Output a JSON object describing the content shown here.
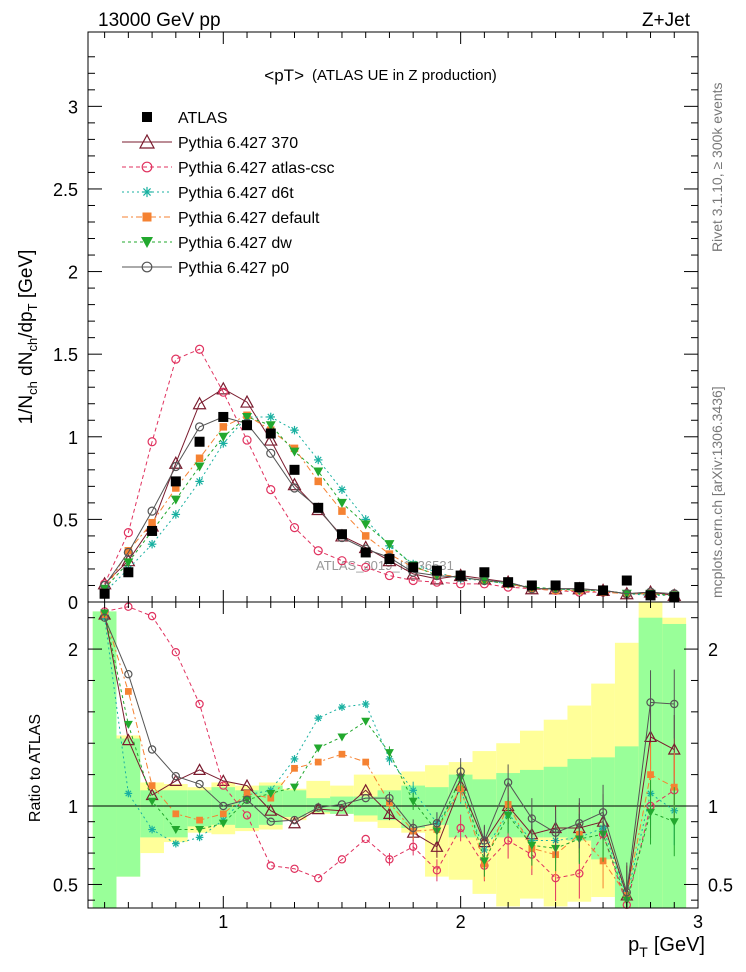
{
  "header": {
    "left": "13000 GeV pp",
    "right": "Z+Jet"
  },
  "side_labels": {
    "rivet": "Rivet 3.1.10, ≥ 300k events",
    "mcplots": "mcplots.cern.ch [arXiv:1306.3436]"
  },
  "chart_data": {
    "type": "scatter",
    "title": "<pT>",
    "subtitle": "(ATLAS UE in Z production)",
    "watermark": "ATLAS_2019_I1736531",
    "xlabel": "p_T [GeV]",
    "xlabel_main": "p",
    "xlabel_sub": "T",
    "xlabel_unit": "[GeV]",
    "ylabel": "1/N_ch dN_ch/dp_T [GeV]",
    "ylabel_parts": [
      "1/N",
      "ch",
      " dN",
      "ch",
      "/dp",
      "T",
      " [GeV]"
    ],
    "ratio_ylabel": "Ratio to ATLAS",
    "xlim": [
      0.43,
      3.0
    ],
    "ylim": [
      0,
      3.45
    ],
    "ratio_ylim": [
      0.35,
      2.3
    ],
    "xticks": [
      "1",
      "2",
      "3"
    ],
    "yticks": [
      "0",
      "0.5",
      "1",
      "1.5",
      "2",
      "2.5",
      "3"
    ],
    "ratio_yticks": [
      "0.5",
      "1",
      "2"
    ],
    "legend_position": "top-left",
    "x": [
      0.5,
      0.6,
      0.7,
      0.8,
      0.9,
      1.0,
      1.1,
      1.2,
      1.3,
      1.4,
      1.5,
      1.6,
      1.7,
      1.8,
      1.9,
      2.0,
      2.1,
      2.2,
      2.3,
      2.4,
      2.5,
      2.6,
      2.7,
      2.8,
      2.9
    ],
    "data": {
      "name": "ATLAS",
      "color": "#000000",
      "values": [
        0.05,
        0.18,
        0.43,
        0.73,
        0.97,
        1.12,
        1.07,
        1.02,
        0.8,
        0.57,
        0.41,
        0.3,
        0.26,
        0.21,
        0.19,
        0.16,
        0.18,
        0.12,
        0.1,
        0.1,
        0.09,
        0.07,
        0.13,
        0.04,
        0.03
      ]
    },
    "series": [
      {
        "name": "Pythia 6.427 370",
        "color": "#7a1b2e",
        "marker": "triangle-open",
        "dash": "",
        "values": [
          0.11,
          0.25,
          0.46,
          0.84,
          1.2,
          1.29,
          1.21,
          0.98,
          0.71,
          0.56,
          0.4,
          0.33,
          0.25,
          0.17,
          0.14,
          0.16,
          0.14,
          0.12,
          0.08,
          0.08,
          0.08,
          0.07,
          0.05,
          0.06,
          0.04
        ],
        "ratio": [
          2.22,
          1.42,
          1.07,
          1.16,
          1.23,
          1.16,
          1.13,
          0.97,
          0.89,
          0.98,
          0.97,
          1.1,
          0.95,
          0.83,
          0.74,
          1.13,
          0.77,
          1.0,
          0.82,
          0.86,
          0.86,
          0.9,
          0.43,
          1.44,
          1.36
        ]
      },
      {
        "name": "Pythia 6.427 atlas-csc",
        "color": "#e0325f",
        "marker": "circle-open",
        "dash": "4,3",
        "values": [
          0.11,
          0.42,
          0.97,
          1.47,
          1.53,
          1.27,
          0.98,
          0.68,
          0.45,
          0.31,
          0.25,
          0.21,
          0.16,
          0.13,
          0.12,
          0.11,
          0.11,
          0.09,
          0.08,
          0.07,
          0.06,
          0.06,
          0.05,
          0.05,
          0.04
        ],
        "ratio": [
          2.24,
          2.27,
          2.21,
          1.98,
          1.65,
          1.13,
          0.94,
          0.62,
          0.6,
          0.54,
          0.66,
          0.79,
          0.66,
          0.74,
          0.59,
          0.86,
          0.62,
          0.78,
          0.69,
          0.54,
          0.57,
          0.82,
          0.37,
          1.0,
          1.1
        ]
      },
      {
        "name": "Pythia 6.427 d6t",
        "color": "#18b0a0",
        "marker": "star",
        "dash": "2,3",
        "values": [
          0.06,
          0.2,
          0.35,
          0.53,
          0.73,
          0.96,
          1.12,
          1.12,
          1.04,
          0.86,
          0.68,
          0.5,
          0.34,
          0.23,
          0.18,
          0.14,
          0.13,
          0.11,
          0.08,
          0.08,
          0.07,
          0.07,
          0.05,
          0.04,
          0.04
        ],
        "ratio": [
          2.2,
          1.08,
          0.85,
          0.76,
          0.8,
          0.91,
          1.07,
          1.1,
          1.3,
          1.56,
          1.63,
          1.65,
          1.3,
          1.1,
          0.89,
          1.1,
          0.72,
          0.95,
          0.78,
          0.78,
          0.8,
          0.86,
          0.42,
          1.08,
          0.97
        ]
      },
      {
        "name": "Pythia 6.427 default",
        "color": "#f58232",
        "marker": "square",
        "dash": "6,3,2,3",
        "values": [
          0.07,
          0.31,
          0.48,
          0.69,
          0.87,
          1.06,
          1.13,
          1.04,
          0.93,
          0.73,
          0.55,
          0.4,
          0.29,
          0.21,
          0.17,
          0.15,
          0.13,
          0.11,
          0.08,
          0.07,
          0.07,
          0.06,
          0.05,
          0.05,
          0.04
        ],
        "ratio": [
          2.22,
          1.73,
          1.13,
          0.95,
          0.91,
          0.95,
          1.08,
          1.05,
          1.24,
          1.28,
          1.33,
          1.28,
          1.02,
          0.84,
          0.85,
          1.11,
          0.63,
          1.01,
          0.73,
          0.69,
          0.82,
          0.65,
          0.43,
          1.2,
          1.12
        ]
      },
      {
        "name": "Pythia 6.427 dw",
        "color": "#22a82e",
        "marker": "triangle-down",
        "dash": "3,3",
        "values": [
          0.08,
          0.24,
          0.43,
          0.62,
          0.82,
          1.0,
          1.12,
          1.07,
          0.91,
          0.79,
          0.6,
          0.47,
          0.35,
          0.22,
          0.16,
          0.15,
          0.13,
          0.11,
          0.09,
          0.08,
          0.07,
          0.07,
          0.05,
          0.05,
          0.04
        ],
        "ratio": [
          2.23,
          1.52,
          1.03,
          0.85,
          0.85,
          0.89,
          1.04,
          1.08,
          1.12,
          1.37,
          1.44,
          1.54,
          1.34,
          1.03,
          0.84,
          1.18,
          0.65,
          0.94,
          0.75,
          0.73,
          0.79,
          0.82,
          0.4,
          0.96,
          0.9
        ]
      },
      {
        "name": "Pythia 6.427 p0",
        "color": "#555555",
        "marker": "circle-open",
        "dash": "",
        "values": [
          0.1,
          0.3,
          0.55,
          0.82,
          1.06,
          1.12,
          1.08,
          0.9,
          0.69,
          0.57,
          0.39,
          0.32,
          0.27,
          0.18,
          0.16,
          0.15,
          0.13,
          0.12,
          0.08,
          0.08,
          0.08,
          0.07,
          0.05,
          0.06,
          0.05
        ],
        "ratio": [
          2.2,
          1.84,
          1.36,
          1.19,
          1.14,
          1.0,
          1.04,
          0.9,
          0.91,
          0.99,
          1.01,
          1.05,
          1.05,
          0.86,
          0.89,
          1.22,
          0.78,
          1.15,
          0.92,
          0.83,
          0.89,
          0.96,
          0.45,
          1.66,
          1.65
        ]
      }
    ],
    "ratio_bands": {
      "stat_color": "#99ff99",
      "syst_color": "#ffff99",
      "green_low": [
        0.35,
        0.55,
        0.8,
        0.8,
        0.87,
        0.88,
        0.86,
        0.88,
        0.93,
        0.96,
        0.95,
        0.94,
        0.91,
        0.86,
        0.88,
        0.8,
        0.8,
        0.8,
        0.8,
        0.8,
        0.78,
        0.66,
        0.35,
        0.35,
        0.35
      ],
      "green_high": [
        2.24,
        1.43,
        1.1,
        1.1,
        1.1,
        1.12,
        1.1,
        1.13,
        1.1,
        1.05,
        1.06,
        1.06,
        1.1,
        1.13,
        1.12,
        1.2,
        1.17,
        1.21,
        1.23,
        1.25,
        1.3,
        1.31,
        1.38,
        2.2,
        2.16
      ],
      "yellow_low": [
        0.35,
        0.55,
        0.7,
        0.77,
        0.83,
        0.82,
        0.84,
        0.85,
        0.91,
        0.95,
        0.95,
        0.9,
        0.86,
        0.83,
        0.55,
        0.53,
        0.44,
        0.36,
        0.41,
        0.36,
        0.39,
        0.42,
        0.35,
        0.35,
        0.35
      ],
      "yellow_high": [
        2.24,
        1.45,
        1.15,
        1.14,
        1.12,
        1.15,
        1.13,
        1.15,
        1.11,
        1.16,
        1.13,
        1.2,
        1.2,
        1.22,
        1.26,
        1.28,
        1.35,
        1.4,
        1.48,
        1.55,
        1.64,
        1.78,
        2.04,
        2.3,
        2.2
      ]
    }
  }
}
